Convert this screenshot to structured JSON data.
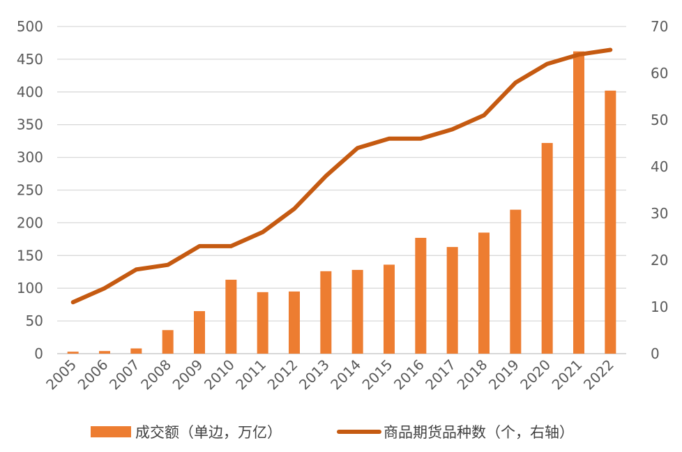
{
  "chart_data": {
    "type": "bar",
    "categories": [
      "2005",
      "2006",
      "2007",
      "2008",
      "2009",
      "2010",
      "2011",
      "2012",
      "2013",
      "2014",
      "2015",
      "2016",
      "2017",
      "2018",
      "2019",
      "2020",
      "2021",
      "2022"
    ],
    "series": [
      {
        "name": "成交额（单边，万亿）",
        "type": "bar",
        "axis": "left",
        "color": "#ED7D31",
        "values": [
          3,
          4,
          8,
          36,
          65,
          113,
          94,
          95,
          126,
          128,
          136,
          177,
          163,
          185,
          220,
          322,
          462,
          402
        ]
      },
      {
        "name": "商品期货品种数（个，右轴）",
        "type": "line",
        "axis": "right",
        "color": "#C55A11",
        "values": [
          11,
          14,
          18,
          19,
          23,
          23,
          26,
          31,
          38,
          44,
          46,
          46,
          48,
          51,
          58,
          62,
          64,
          65
        ]
      }
    ],
    "y_left": {
      "min": 0,
      "max": 500,
      "ticks": [
        0,
        50,
        100,
        150,
        200,
        250,
        300,
        350,
        400,
        450,
        500
      ]
    },
    "y_right": {
      "min": 0,
      "max": 70,
      "ticks": [
        0,
        10,
        20,
        30,
        40,
        50,
        60,
        70
      ]
    },
    "grid": true,
    "legend_position": "bottom"
  }
}
